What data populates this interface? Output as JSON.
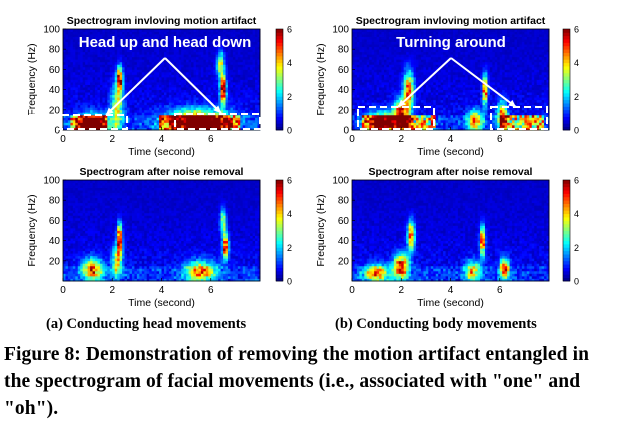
{
  "chart_data": [
    {
      "id": "a-top",
      "type": "heatmap",
      "title": "Spectrogram invloving motion artifact",
      "annotation": "Head up and head down",
      "xlabel": "Time (second)",
      "ylabel": "Frequency (Hz)",
      "xlim": [
        0,
        8
      ],
      "ylim": [
        0,
        100
      ],
      "xticks": [
        0,
        2,
        4,
        6
      ],
      "yticks": [
        0,
        20,
        40,
        60,
        80,
        100
      ],
      "colorbar": {
        "min": 0,
        "max": 6,
        "ticks": [
          0,
          2,
          4,
          6
        ]
      },
      "artifact_time_ranges_s": [
        [
          0.3,
          1.8
        ],
        [
          3.9,
          7.2
        ]
      ],
      "bursts": [
        {
          "t": 1.2,
          "f": 5,
          "dt": 0.6,
          "df": 10,
          "v": 5.5
        },
        {
          "t": 2.3,
          "f": 50,
          "dt": 0.12,
          "df": 12,
          "v": 6
        },
        {
          "t": 2.2,
          "f": 22,
          "dt": 0.25,
          "df": 22,
          "v": 3
        },
        {
          "t": 5.5,
          "f": 8,
          "dt": 1.2,
          "df": 12,
          "v": 5.5
        },
        {
          "t": 6.5,
          "f": 40,
          "dt": 0.12,
          "df": 14,
          "v": 6
        },
        {
          "t": 6.4,
          "f": 65,
          "dt": 0.15,
          "df": 12,
          "v": 3.5
        }
      ]
    },
    {
      "id": "b-top",
      "type": "heatmap",
      "title": "Spectrogram invloving motion artifact",
      "annotation": "Turning around",
      "xlabel": "Time (second)",
      "ylabel": "Frequency (Hz)",
      "xlim": [
        0,
        8
      ],
      "ylim": [
        0,
        100
      ],
      "xticks": [
        0,
        2,
        4,
        6
      ],
      "yticks": [
        0,
        20,
        40,
        60,
        80,
        100
      ],
      "colorbar": {
        "min": 0,
        "max": 6,
        "ticks": [
          0,
          2,
          4,
          6
        ]
      },
      "artifact_time_ranges_s": [
        [
          0.4,
          3.4
        ],
        [
          6.0,
          7.8
        ]
      ],
      "bursts": [
        {
          "t": 2.0,
          "f": 15,
          "dt": 0.3,
          "df": 14,
          "v": 5.5
        },
        {
          "t": 2.3,
          "f": 40,
          "dt": 0.2,
          "df": 18,
          "v": 4.5
        },
        {
          "t": 1.2,
          "f": 8,
          "dt": 0.6,
          "df": 10,
          "v": 4
        },
        {
          "t": 5.4,
          "f": 40,
          "dt": 0.1,
          "df": 14,
          "v": 5.5
        },
        {
          "t": 6.1,
          "f": 15,
          "dt": 0.2,
          "df": 12,
          "v": 4.5
        },
        {
          "t": 5.0,
          "f": 10,
          "dt": 0.3,
          "df": 10,
          "v": 4
        }
      ]
    },
    {
      "id": "a-bottom",
      "type": "heatmap",
      "title": "Spectrogram after noise removal",
      "xlabel": "Time (second)",
      "ylabel": "Frequency (Hz)",
      "xlim": [
        0,
        8
      ],
      "ylim": [
        0,
        100
      ],
      "xticks": [
        0,
        2,
        4,
        6
      ],
      "yticks": [
        20,
        40,
        60,
        80,
        100
      ],
      "colorbar": {
        "min": 0,
        "max": 6,
        "ticks": [
          0,
          2,
          4,
          6
        ]
      },
      "bursts": [
        {
          "t": 1.2,
          "f": 12,
          "dt": 0.4,
          "df": 10,
          "v": 4.5
        },
        {
          "t": 2.3,
          "f": 42,
          "dt": 0.1,
          "df": 14,
          "v": 6
        },
        {
          "t": 2.2,
          "f": 20,
          "dt": 0.2,
          "df": 15,
          "v": 3.5
        },
        {
          "t": 5.6,
          "f": 10,
          "dt": 0.6,
          "df": 10,
          "v": 4
        },
        {
          "t": 6.6,
          "f": 35,
          "dt": 0.12,
          "df": 12,
          "v": 6
        },
        {
          "t": 6.5,
          "f": 60,
          "dt": 0.12,
          "df": 12,
          "v": 3
        }
      ]
    },
    {
      "id": "b-bottom",
      "type": "heatmap",
      "title": "Spectrogram after noise removal",
      "xlabel": "Time (second)",
      "ylabel": "Frequency (Hz)",
      "xlim": [
        0,
        8
      ],
      "ylim": [
        0,
        100
      ],
      "xticks": [
        0,
        2,
        4,
        6
      ],
      "yticks": [
        20,
        40,
        60,
        80,
        100
      ],
      "colorbar": {
        "min": 0,
        "max": 6,
        "ticks": [
          0,
          2,
          4,
          6
        ]
      },
      "bursts": [
        {
          "t": 2.0,
          "f": 15,
          "dt": 0.3,
          "df": 12,
          "v": 5
        },
        {
          "t": 2.4,
          "f": 45,
          "dt": 0.15,
          "df": 14,
          "v": 4.5
        },
        {
          "t": 1.0,
          "f": 8,
          "dt": 0.5,
          "df": 8,
          "v": 4
        },
        {
          "t": 5.3,
          "f": 40,
          "dt": 0.1,
          "df": 14,
          "v": 5.5
        },
        {
          "t": 6.2,
          "f": 12,
          "dt": 0.2,
          "df": 10,
          "v": 4.5
        },
        {
          "t": 4.9,
          "f": 10,
          "dt": 0.3,
          "df": 10,
          "v": 3.5
        }
      ]
    }
  ],
  "captions": {
    "left": "(a) Conducting head movements",
    "right": "(b) Conducting body movements",
    "figure": "Figure 8: Demonstration of removing the motion artifact entangled in the spectrogram of facial movements (i.e., associated with \"one\" and \"oh\")."
  }
}
